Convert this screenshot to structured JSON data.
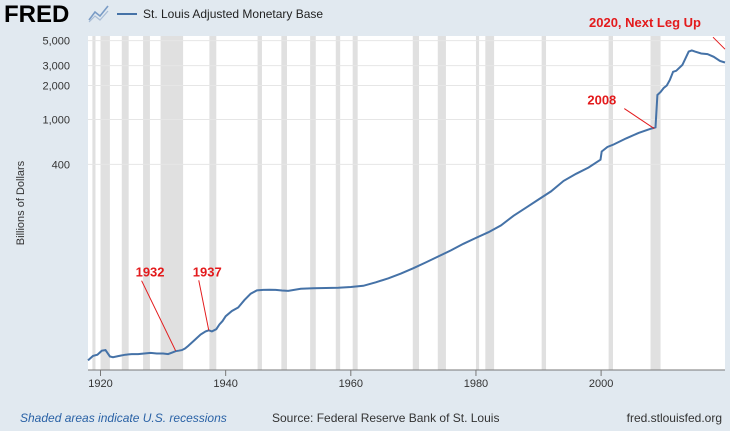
{
  "header": {
    "logo": "FRED",
    "logo_icon": "line-chart-icon",
    "legend": "St. Louis Adjusted Monetary Base"
  },
  "footer": {
    "recession_note": "Shaded areas indicate U.S. recessions",
    "source": "Source: Federal Reserve Bank of St. Louis",
    "site": "fred.stlouisfed.org"
  },
  "colors": {
    "line": "#4572a7",
    "recession": "#e0e0e0",
    "annotation": "#e31a1c",
    "background": "#e1e9f0"
  },
  "chart_data": {
    "type": "line",
    "ylabel": "Billions of Dollars",
    "yscale": "log",
    "ylim": [
      6,
      5500
    ],
    "xlim": [
      1918.0,
      2019.8
    ],
    "x_ticks": [
      1920,
      1940,
      1960,
      1980,
      2000
    ],
    "y_ticks": [
      {
        "value": 400,
        "label": "400"
      },
      {
        "value": 1000,
        "label": "1,000"
      },
      {
        "value": 2000,
        "label": "2,000"
      },
      {
        "value": 3000,
        "label": "3,000"
      },
      {
        "value": 5000,
        "label": "5,000"
      }
    ],
    "grid": true,
    "recessions": [
      [
        1918.7,
        1919.2
      ],
      [
        1920.0,
        1921.5
      ],
      [
        1923.4,
        1924.5
      ],
      [
        1926.8,
        1927.9
      ],
      [
        1929.6,
        1933.2
      ],
      [
        1937.4,
        1938.5
      ],
      [
        1945.1,
        1945.8
      ],
      [
        1948.9,
        1949.8
      ],
      [
        1953.5,
        1954.4
      ],
      [
        1957.6,
        1958.3
      ],
      [
        1960.3,
        1961.1
      ],
      [
        1969.9,
        1970.9
      ],
      [
        1973.9,
        1975.2
      ],
      [
        1980.0,
        1980.5
      ],
      [
        1981.5,
        1982.9
      ],
      [
        1990.5,
        1991.2
      ],
      [
        2001.2,
        2001.9
      ],
      [
        2007.9,
        2009.5
      ]
    ],
    "series": [
      {
        "x": [
          1918.0,
          1918.8,
          1919.5,
          1920.2,
          1920.8,
          1921.5,
          1922.0,
          1923.0,
          1924.0,
          1925.0,
          1926.0,
          1927.0,
          1928.0,
          1929.0,
          1930.0,
          1930.8,
          1931.5,
          1932.0,
          1932.5,
          1933.0,
          1933.5,
          1934.0,
          1935.0,
          1936.0,
          1936.8,
          1937.3,
          1937.8,
          1938.5,
          1939.0,
          1939.5,
          1940.0,
          1941.0,
          1942.0,
          1943.0,
          1944.0,
          1945.0,
          1946.0,
          1947.0,
          1948.0,
          1949.0,
          1950.0,
          1952.0,
          1954.0,
          1956.0,
          1958.0,
          1960.0,
          1962.0,
          1964.0,
          1966.0,
          1968.0,
          1970.0,
          1972.0,
          1974.0,
          1976.0,
          1978.0,
          1980.0,
          1982.0,
          1984.0,
          1986.0,
          1988.0,
          1990.0,
          1992.0,
          1994.0,
          1996.0,
          1998.0,
          1999.9,
          2000.1,
          2001.0,
          2002.0,
          2004.0,
          2006.0,
          2008.0,
          2008.7,
          2009.0,
          2009.5,
          2010.0,
          2010.5,
          2011.0,
          2011.5,
          2012.0,
          2013.0,
          2014.0,
          2014.5,
          2015.0,
          2016.0,
          2017.0,
          2018.0,
          2019.0,
          2019.8
        ],
        "y": [
          7.3,
          8.0,
          8.2,
          8.9,
          9.0,
          7.9,
          7.8,
          8.0,
          8.2,
          8.3,
          8.3,
          8.4,
          8.5,
          8.4,
          8.4,
          8.3,
          8.6,
          8.8,
          8.9,
          9.0,
          9.3,
          9.8,
          11.0,
          12.4,
          13.2,
          13.5,
          13.2,
          13.8,
          15.2,
          16.3,
          18.0,
          20.0,
          21.5,
          25.0,
          28.5,
          30.5,
          30.8,
          30.9,
          30.8,
          30.4,
          30.2,
          31.5,
          31.8,
          32.0,
          32.2,
          32.7,
          33.5,
          36.0,
          39.0,
          43.0,
          48.0,
          54.0,
          61.0,
          69.0,
          79.0,
          89.0,
          100.0,
          115.0,
          140.0,
          165.0,
          195.0,
          230.0,
          285.0,
          330.0,
          375.0,
          440.0,
          520.0,
          570.0,
          600.0,
          680.0,
          760.0,
          830.0,
          850.0,
          1650.0,
          1750.0,
          1900.0,
          2000.0,
          2250.0,
          2650.0,
          2700.0,
          3050.0,
          4000.0,
          4100.0,
          4000.0,
          3850.0,
          3800.0,
          3600.0,
          3300.0,
          3200.0
        ]
      }
    ],
    "annotations": [
      {
        "text": "1932",
        "x": 1932.0,
        "y": 8.9
      },
      {
        "text": "1937",
        "x": 1937.3,
        "y": 13.5
      },
      {
        "text": "2008",
        "x": 2008.5,
        "y": 830.0
      },
      {
        "text": "2020, Next Leg Up",
        "x": 2019.8,
        "y": 4200.0
      }
    ]
  }
}
